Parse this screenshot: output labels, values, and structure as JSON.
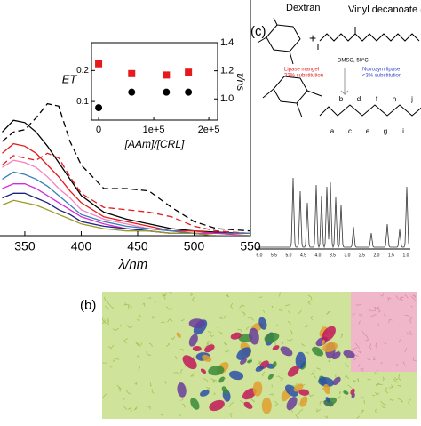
{
  "chart_data": [
    {
      "type": "line",
      "xlabel": "λ/nm",
      "x": [
        330,
        340,
        350,
        360,
        370,
        380,
        390,
        400,
        420,
        440,
        460,
        480,
        500,
        520,
        550
      ],
      "xlim": [
        328,
        550
      ],
      "xticks": [
        350,
        400,
        450,
        500,
        550
      ],
      "ylim": [
        0,
        1
      ],
      "series": [
        {
          "color": "#000000",
          "dash": false,
          "values": [
            0.44,
            0.49,
            0.48,
            0.44,
            0.38,
            0.31,
            0.24,
            0.17,
            0.1,
            0.07,
            0.05,
            0.03,
            0.02,
            0.015,
            0.01
          ]
        },
        {
          "color": "#000000",
          "dash": true,
          "values": [
            0.4,
            0.44,
            0.45,
            0.5,
            0.56,
            0.55,
            0.4,
            0.3,
            0.2,
            0.2,
            0.19,
            0.12,
            0.06,
            0.03,
            0.02
          ]
        },
        {
          "color": "#e41a1c",
          "dash": false,
          "values": [
            0.35,
            0.39,
            0.38,
            0.35,
            0.3,
            0.25,
            0.19,
            0.14,
            0.08,
            0.06,
            0.04,
            0.02,
            0.02,
            0.01,
            0.01
          ]
        },
        {
          "color": "#e41a1c",
          "dash": true,
          "values": [
            0.3,
            0.34,
            0.33,
            0.32,
            0.35,
            0.33,
            0.25,
            0.18,
            0.12,
            0.11,
            0.1,
            0.08,
            0.04,
            0.02,
            0.01
          ]
        },
        {
          "color": "#f781bf",
          "dash": false,
          "values": [
            0.29,
            0.32,
            0.31,
            0.29,
            0.25,
            0.2,
            0.16,
            0.11,
            0.07,
            0.05,
            0.03,
            0.02,
            0.01,
            0.01,
            0.01
          ]
        },
        {
          "color": "#377eb8",
          "dash": false,
          "values": [
            0.24,
            0.27,
            0.26,
            0.24,
            0.21,
            0.17,
            0.13,
            0.09,
            0.06,
            0.04,
            0.03,
            0.02,
            0.01,
            0.01,
            0.01
          ]
        },
        {
          "color": "#d62ad6",
          "dash": false,
          "values": [
            0.2,
            0.22,
            0.22,
            0.2,
            0.17,
            0.14,
            0.11,
            0.08,
            0.05,
            0.03,
            0.02,
            0.01,
            0.01,
            0.01,
            0
          ]
        },
        {
          "color": "#1a237e",
          "dash": false,
          "values": [
            0.16,
            0.18,
            0.18,
            0.16,
            0.14,
            0.11,
            0.09,
            0.06,
            0.04,
            0.03,
            0.02,
            0.01,
            0.01,
            0,
            0
          ]
        },
        {
          "color": "#9a9a2a",
          "dash": false,
          "values": [
            0.13,
            0.15,
            0.14,
            0.13,
            0.11,
            0.09,
            0.07,
            0.05,
            0.03,
            0.02,
            0.02,
            0.01,
            0.01,
            0,
            0
          ]
        }
      ]
    },
    {
      "type": "scatter",
      "xlabel": "[AAm]/[CRL]",
      "ylabel": "ET",
      "y2label": "τ/ns",
      "x": [
        0,
        60000,
        123000,
        163000
      ],
      "xlim": [
        -13000,
        216000
      ],
      "xticks": [
        0,
        {
          "value": 100000,
          "label": "1e+5"
        },
        {
          "value": 200000,
          "label": "2e+5"
        }
      ],
      "ylim": [
        0.04,
        0.29
      ],
      "yticks": [
        0.1,
        0.2
      ],
      "y2lim": [
        0.85,
        1.4
      ],
      "y2ticks": [
        {
          "value": 1,
          "label": "1.0"
        },
        1.2,
        1.4
      ],
      "series": [
        {
          "color": "#000000",
          "marker": "circle",
          "values": [
            0.08,
            0.13,
            0.13,
            0.13
          ]
        },
        {
          "color": "#e41a1c",
          "marker": "square",
          "axis": "y2",
          "values": [
            1.25,
            1.18,
            1.17,
            1.19
          ]
        }
      ]
    }
  ],
  "panel_c": {
    "label": "(c)",
    "dextran": "Dextran",
    "vd": "Vinyl decanoate (VD)",
    "conditions": "DMSO, 50°C",
    "enzyme1": "Lipase mangel",
    "enzyme1_sub": "33% substitution",
    "enzyme2": "Novozym lipase",
    "enzyme2_sub": "<3% substitution",
    "carbons": [
      "a",
      "b",
      "c",
      "d",
      "e",
      "f",
      "g",
      "h",
      "i",
      "j"
    ],
    "nmr_axis": [
      "6.0",
      "5.5",
      "5.0",
      "4.5",
      "4.0",
      "3.5",
      "3.0",
      "2.5",
      "2.0",
      "1.5",
      "1.0"
    ]
  },
  "panel_b": {
    "label": "(b)"
  }
}
